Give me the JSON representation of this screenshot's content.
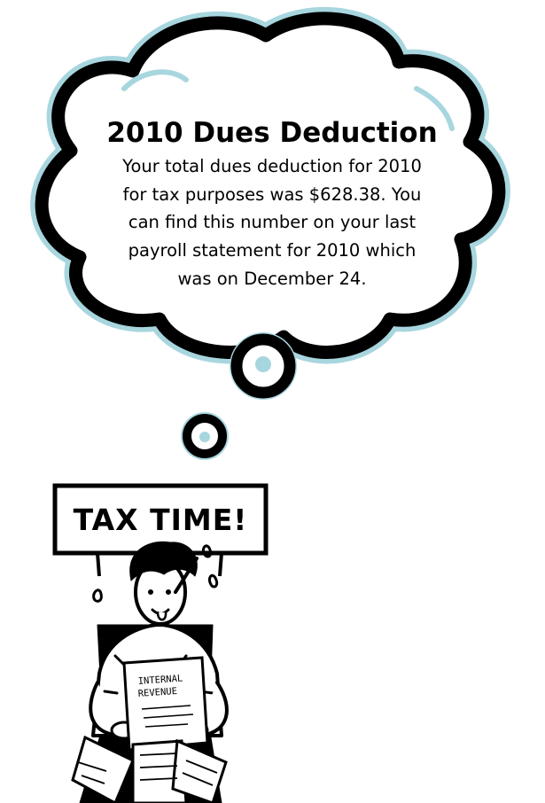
{
  "thought_bubble": {
    "title": "2010 Dues Deduction",
    "lines": [
      "Your total dues deduction for 2010",
      "for tax purposes was $628.38. You",
      "can find this number on your last",
      "payroll statement for 2010 which",
      "was on December 24."
    ]
  },
  "sign": {
    "text": "TAX TIME!"
  },
  "document": {
    "line1": "INTERNAL",
    "line2": "REVENUE"
  },
  "colors": {
    "bubble_outline": "#000000",
    "bubble_halo": "#a8d6df",
    "bubble_fill": "#ffffff"
  }
}
